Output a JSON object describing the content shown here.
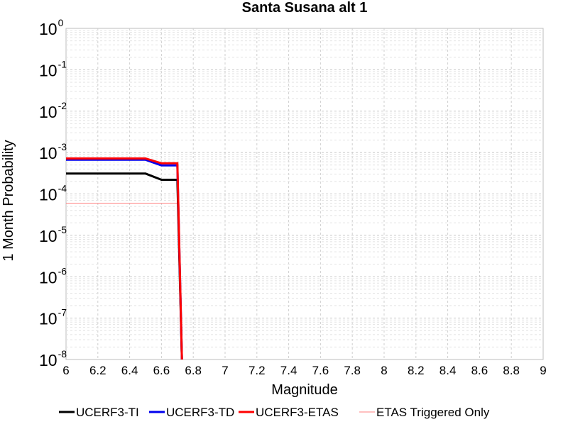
{
  "chart_data": {
    "type": "line",
    "title": "Santa Susana alt 1",
    "xlabel": "Magnitude",
    "ylabel": "1 Month Probability",
    "xlim": [
      6,
      9
    ],
    "ylim": [
      1e-08,
      1
    ],
    "yscale": "log",
    "grid": true,
    "legend_position": "bottom",
    "x_ticks": [
      "6",
      "6.2",
      "6.4",
      "6.6",
      "6.8",
      "7",
      "7.2",
      "7.4",
      "7.6",
      "7.8",
      "8",
      "8.2",
      "8.4",
      "8.6",
      "8.8",
      "9"
    ],
    "y_ticks": [
      {
        "base": "10",
        "exp": "0"
      },
      {
        "base": "10",
        "exp": "-1"
      },
      {
        "base": "10",
        "exp": "-2"
      },
      {
        "base": "10",
        "exp": "-3"
      },
      {
        "base": "10",
        "exp": "-4"
      },
      {
        "base": "10",
        "exp": "-5"
      },
      {
        "base": "10",
        "exp": "-6"
      },
      {
        "base": "10",
        "exp": "-7"
      },
      {
        "base": "10",
        "exp": "-8"
      }
    ],
    "series": [
      {
        "name": "UCERF3-TI",
        "color": "#000000",
        "x": [
          6.0,
          6.5,
          6.6,
          6.7,
          6.73
        ],
        "y": [
          0.00031,
          0.00031,
          0.00022,
          0.00022,
          1e-09
        ]
      },
      {
        "name": "UCERF3-TD",
        "color": "#0000ee",
        "x": [
          6.0,
          6.5,
          6.6,
          6.7,
          6.73
        ],
        "y": [
          0.00067,
          0.00067,
          0.00049,
          0.00049,
          1e-09
        ]
      },
      {
        "name": "UCERF3-ETAS",
        "color": "#ff0000",
        "x": [
          6.0,
          6.5,
          6.6,
          6.7,
          6.73
        ],
        "y": [
          0.00072,
          0.00072,
          0.00055,
          0.00055,
          1e-09
        ]
      },
      {
        "name": "ETAS Triggered Only",
        "color": "#ff8080",
        "x": [
          6.0,
          6.7
        ],
        "y": [
          6e-05,
          6e-05
        ]
      }
    ]
  }
}
